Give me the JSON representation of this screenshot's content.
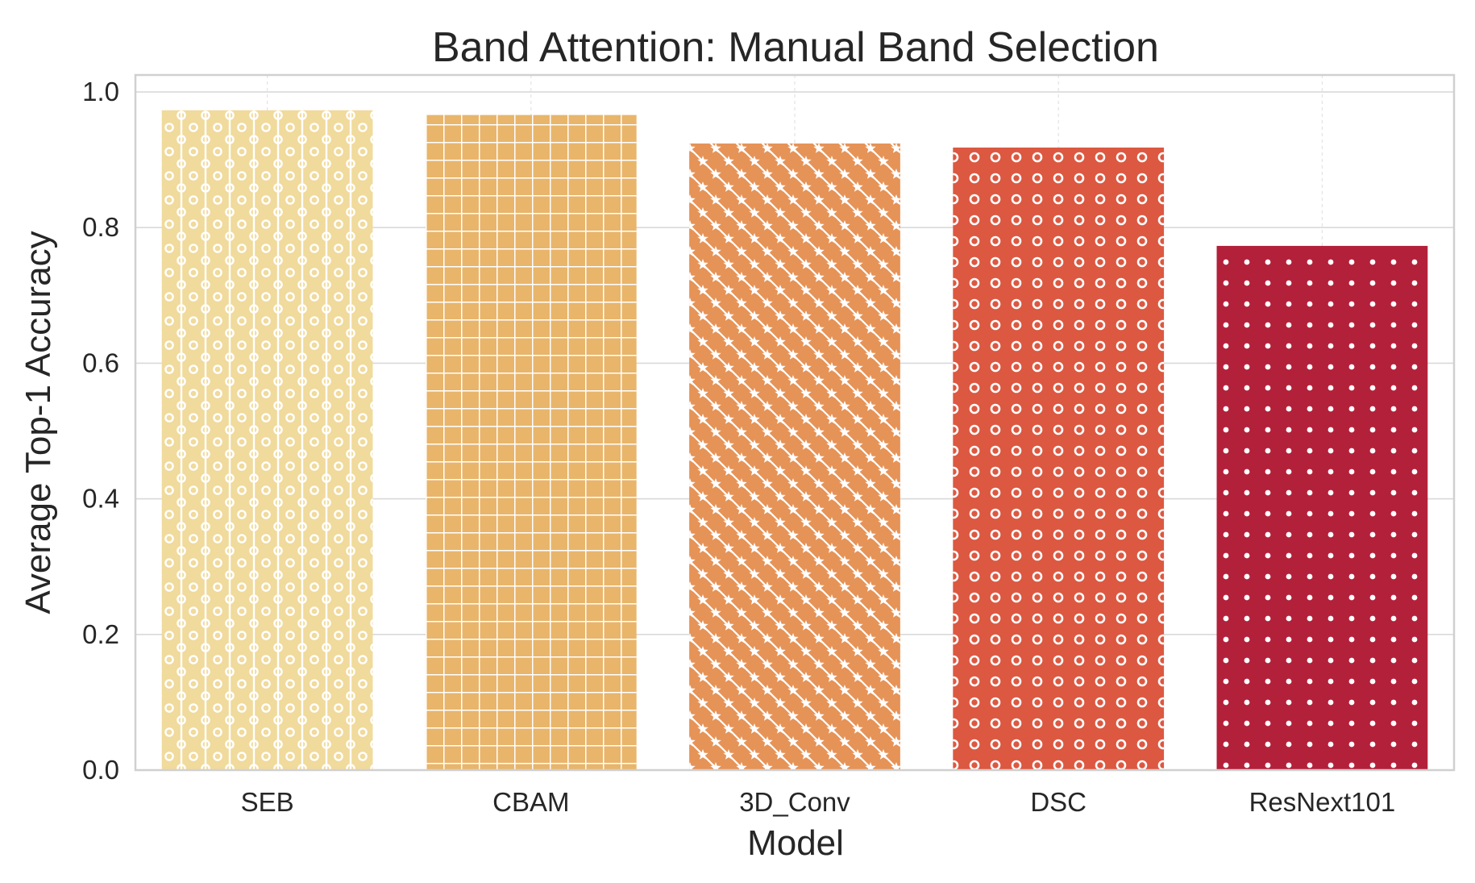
{
  "chart_data": {
    "type": "bar",
    "title": "Band Attention: Manual Band Selection",
    "xlabel": "Model",
    "ylabel": "Average Top-1 Accuracy",
    "categories": [
      "SEB",
      "CBAM",
      "3D_Conv",
      "DSC",
      "ResNext101"
    ],
    "values": [
      0.973,
      0.966,
      0.924,
      0.918,
      0.773
    ],
    "colors": [
      "#f0da9c",
      "#e8b56b",
      "#e69357",
      "#dc5841",
      "#b3203a"
    ],
    "patterns": [
      "line-circle",
      "grid",
      "star-diagonal",
      "ring",
      "dot"
    ],
    "ylim": [
      0.0,
      1.025
    ],
    "yticks": [
      0.0,
      0.2,
      0.4,
      0.6,
      0.8,
      1.0
    ],
    "ytick_labels": [
      "0.0",
      "0.2",
      "0.4",
      "0.6",
      "0.8",
      "1.0"
    ],
    "grid": true
  }
}
